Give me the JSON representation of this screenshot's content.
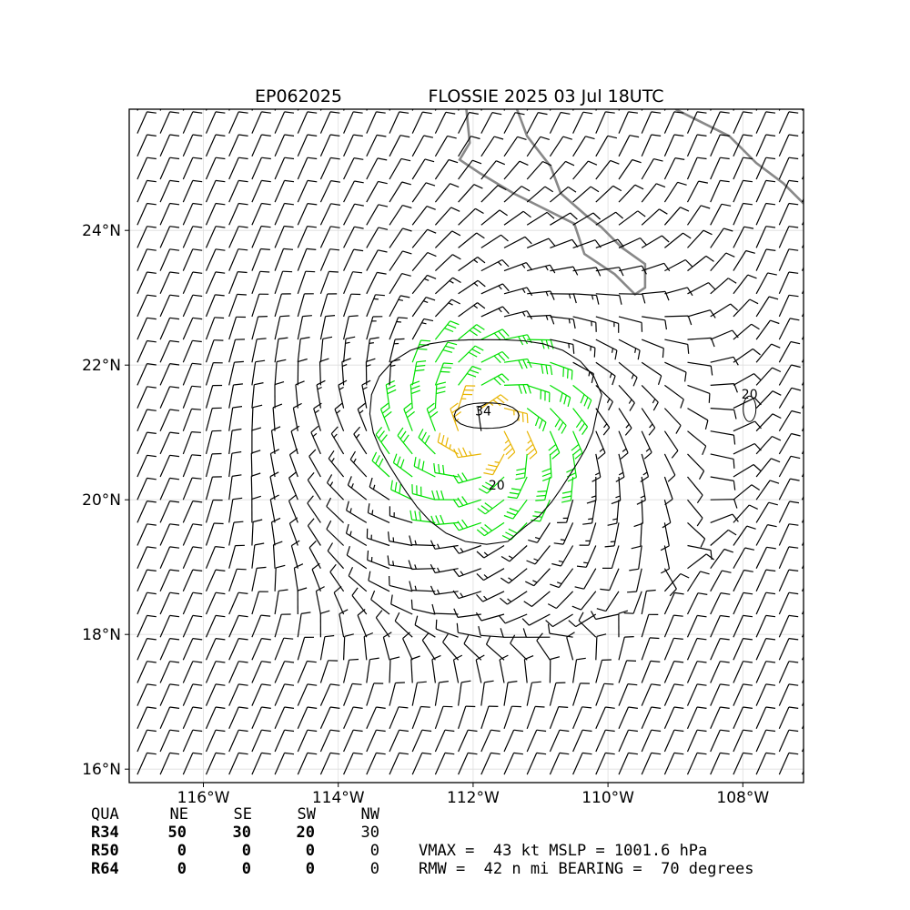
{
  "header": {
    "storm_id": "EP062025",
    "storm_title": "FLOSSIE 2025 03 Jul 18UTC"
  },
  "chart_data": {
    "type": "wind-barb-map",
    "lon_range": [
      -117.1,
      -107.1
    ],
    "lat_range": [
      15.8,
      25.8
    ],
    "x_ticks": [
      {
        "lon": -116,
        "label": "116°W"
      },
      {
        "lon": -114,
        "label": "114°W"
      },
      {
        "lon": -112,
        "label": "112°W"
      },
      {
        "lon": -110,
        "label": "110°W"
      },
      {
        "lon": -108,
        "label": "108°W"
      }
    ],
    "y_ticks": [
      {
        "lat": 24,
        "label": "24°N"
      },
      {
        "lat": 22,
        "label": "22°N"
      },
      {
        "lat": 20,
        "label": "20°N"
      },
      {
        "lat": 18,
        "label": "18°N"
      },
      {
        "lat": 16,
        "label": "16°N"
      }
    ],
    "grid": true,
    "center": {
      "lon": -111.8,
      "lat": 21.0
    },
    "contour_labels": [
      {
        "text": "34",
        "lon": -111.85,
        "lat": 21.25
      },
      {
        "text": "20",
        "lon": -111.65,
        "lat": 20.15
      },
      {
        "text": "20",
        "lon": -107.9,
        "lat": 21.5
      }
    ],
    "barb_colors": {
      "low": "#000000",
      "gale": "#00e000",
      "storm": "#e8b400"
    },
    "coastline_color": "#888888"
  },
  "table": {
    "header": [
      "QUA",
      "NE",
      "SE",
      "SW",
      "NW"
    ],
    "rows": [
      [
        "R34",
        "50",
        "30",
        "20",
        "30"
      ],
      [
        "R50",
        "0",
        "0",
        "0",
        "0"
      ],
      [
        "R64",
        "0",
        "0",
        "0",
        "0"
      ]
    ]
  },
  "info": {
    "line1": "VMAX =  43 kt MSLP = 1001.6 hPa",
    "line2": "RMW =  42 n mi BEARING =  70 degrees"
  }
}
